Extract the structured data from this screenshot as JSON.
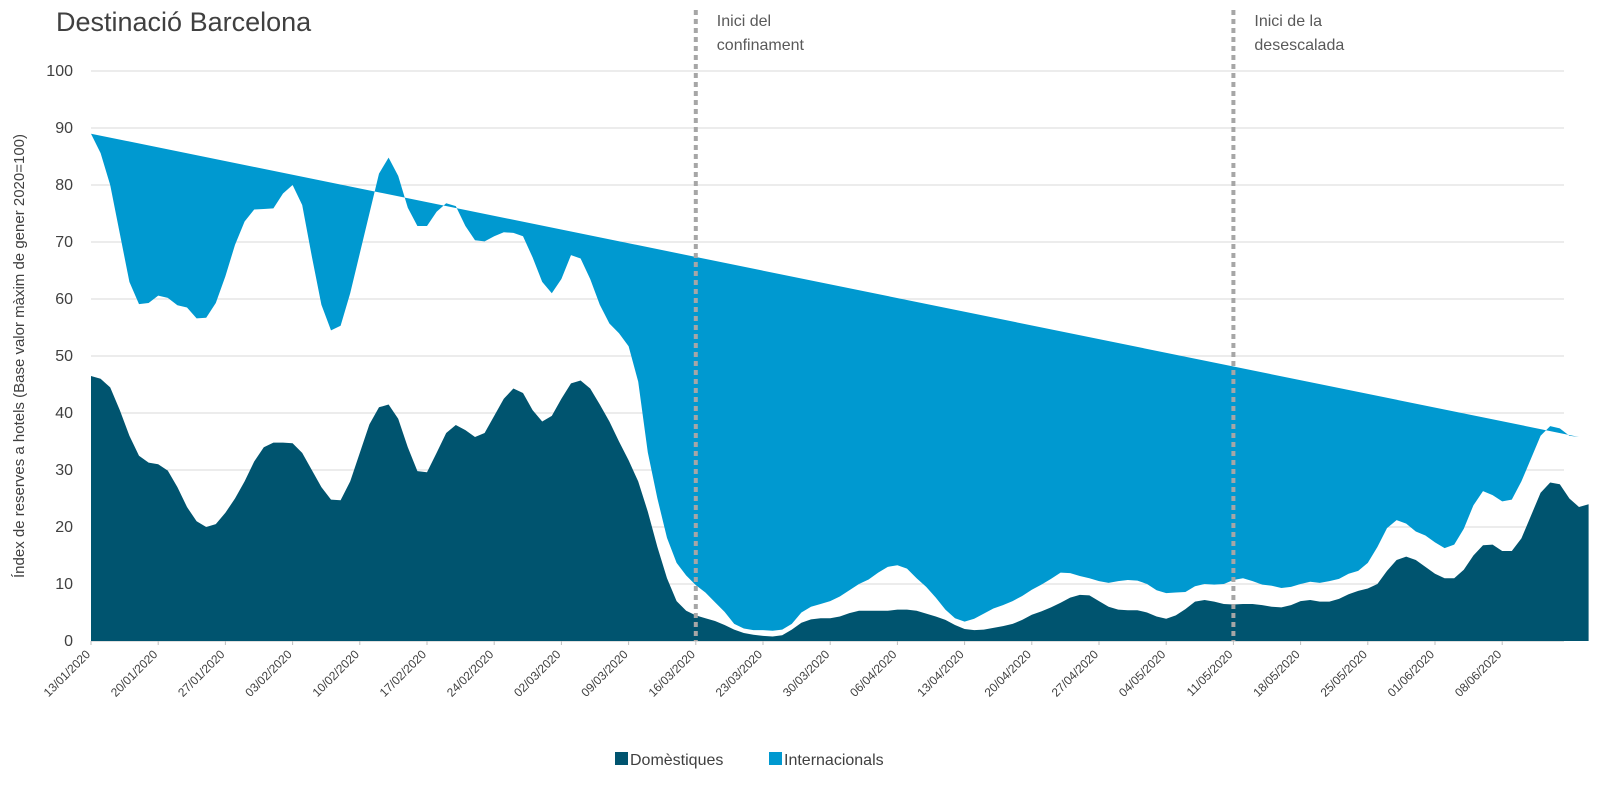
{
  "chart_data": {
    "type": "area",
    "title": "Destinació Barcelona",
    "ylabel": "Índex de reserves a hotels (Base valor màxim de gener 2020=100)",
    "xlabel": "",
    "ylim": [
      0,
      100
    ],
    "yticks": [
      0,
      10,
      20,
      30,
      40,
      50,
      60,
      70,
      80,
      90,
      100
    ],
    "grid": true,
    "legend_position": "bottom",
    "start_date": "13/01/2020",
    "x_tick_labels": [
      "13/01/2020",
      "20/01/2020",
      "27/01/2020",
      "03/02/2020",
      "10/02/2020",
      "17/02/2020",
      "24/02/2020",
      "02/03/2020",
      "09/03/2020",
      "16/03/2020",
      "23/03/2020",
      "30/03/2020",
      "06/04/2020",
      "13/04/2020",
      "20/04/2020",
      "27/04/2020",
      "04/05/2020",
      "11/05/2020",
      "18/05/2020",
      "25/05/2020",
      "01/06/2020",
      "08/06/2020"
    ],
    "stacked": true,
    "series": [
      {
        "name": "Domèstiques",
        "color": "#00546f",
        "values": [
          46.5,
          46,
          44.5,
          40.5,
          36,
          32.5,
          31.3,
          31,
          29.9,
          27,
          23.5,
          21,
          20,
          20.5,
          22.5,
          25,
          28,
          31.5,
          34,
          34.8,
          34.8,
          34.7,
          33,
          30,
          27,
          24.8,
          24.7,
          28,
          33,
          38,
          41,
          41.5,
          39,
          34,
          29.8,
          29.6,
          33,
          36.5,
          37.9,
          37,
          35.8,
          36.5,
          39.5,
          42.5,
          44.3,
          43.5,
          40.5,
          38.5,
          39.5,
          42.5,
          45.2,
          45.7,
          44.3,
          41.5,
          38.5,
          35,
          31.7,
          28,
          22.7,
          16.5,
          11,
          7,
          5.3,
          4.5,
          4,
          3.5,
          2.8,
          2,
          1.4,
          1.1,
          0.9,
          0.8,
          1,
          2,
          3.2,
          3.8,
          4,
          4,
          4.3,
          4.9,
          5.3,
          5.3,
          5.3,
          5.3,
          5.5,
          5.5,
          5.3,
          4.8,
          4.3,
          3.7,
          2.8,
          2.1,
          1.9,
          2,
          2.3,
          2.6,
          3,
          3.7,
          4.6,
          5.2,
          5.9,
          6.7,
          7.6,
          8.1,
          8,
          7,
          6,
          5.5,
          5.4,
          5.4,
          5,
          4.3,
          3.9,
          4.5,
          5.6,
          6.9,
          7.2,
          6.9,
          6.5,
          6.4,
          6.5,
          6.5,
          6.3,
          6,
          5.9,
          6.3,
          7,
          7.2,
          6.9,
          6.9,
          7.4,
          8.2,
          8.8,
          9.2,
          10,
          12.3,
          14.2,
          14.8,
          14.2,
          13,
          11.8,
          11,
          11,
          12.5,
          15,
          16.8,
          16.9,
          15.8,
          15.8,
          18,
          22,
          26,
          27.8,
          27.5,
          25,
          23.5,
          24
        ]
      },
      {
        "name": "Internacionals",
        "color": "#0099d0",
        "values": [
          42.5,
          39.6,
          35.5,
          31,
          27,
          26.6,
          28,
          29.6,
          30.3,
          31.9,
          35,
          35.6,
          36.7,
          38.8,
          41.5,
          44.5,
          45.6,
          44.2,
          41.8,
          41.1,
          43.7,
          45.3,
          43.5,
          37.5,
          32,
          29.7,
          30.6,
          33,
          35,
          37,
          41,
          43.3,
          42.6,
          42,
          43,
          43.2,
          42.3,
          40.3,
          38.4,
          35.8,
          34.5,
          33.6,
          31.5,
          29.2,
          27.3,
          27.5,
          26.8,
          24.5,
          21.5,
          21,
          22.5,
          21.4,
          19.2,
          17.5,
          17.2,
          19,
          20,
          17.5,
          10.4,
          8.5,
          7.1,
          6.7,
          6.2,
          5.3,
          4.5,
          3.3,
          2.3,
          1,
          0.8,
          0.8,
          1,
          1,
          1,
          1,
          1.8,
          2.2,
          2.5,
          3,
          3.5,
          4,
          4.7,
          5.5,
          6.7,
          7.7,
          7.8,
          7.2,
          5.7,
          4.7,
          3.3,
          1.8,
          1.2,
          1.3,
          2,
          2.8,
          3.4,
          3.7,
          4,
          4.2,
          4.4,
          4.7,
          5,
          5.3,
          4.3,
          3.3,
          3,
          3.5,
          4.2,
          5,
          5.3,
          5.2,
          5,
          4.6,
          4.5,
          4,
          3,
          2.7,
          2.8,
          3,
          3.5,
          4.3,
          4.5,
          4,
          3.6,
          3.7,
          3.4,
          3.2,
          3,
          3.2,
          3.3,
          3.6,
          3.5,
          3.6,
          3.5,
          4.5,
          6.5,
          7.5,
          7,
          5.8,
          5,
          5.5,
          5.5,
          5.3,
          5.9,
          7.2,
          8.8,
          9.5,
          8.7,
          8.7,
          9,
          10,
          10,
          10,
          9.9,
          9.8,
          11,
          12.3
        ]
      }
    ],
    "annotations": [
      {
        "date": "16/03/2020",
        "lines": [
          "Inici  del",
          "confinament"
        ]
      },
      {
        "date": "11/05/2020",
        "lines": [
          "Inici  de la",
          "desescalada"
        ]
      }
    ]
  }
}
